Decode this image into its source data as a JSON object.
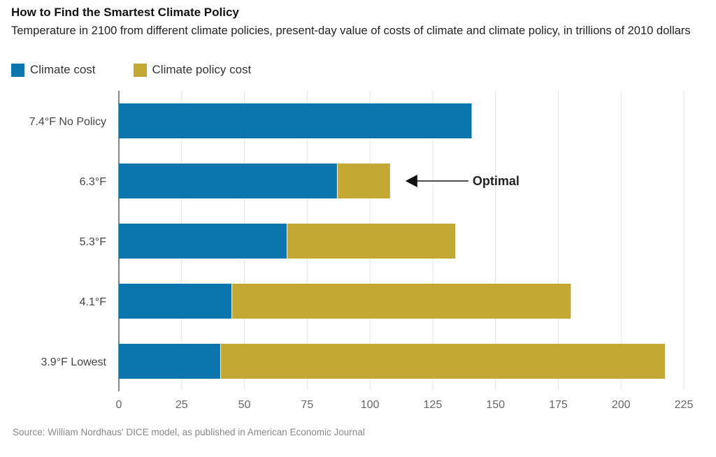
{
  "header": {
    "title": "How to Find the Smartest Climate Policy",
    "subtitle": "Temperature in 2100 from different climate policies, present-day value of costs of climate and climate policy, in trillions of 2010 dollars"
  },
  "legend": {
    "items": [
      {
        "label": "Climate cost",
        "color": "#0a76ad"
      },
      {
        "label": "Climate policy cost",
        "color": "#c4a834"
      }
    ]
  },
  "annotation": {
    "label": "Optimal",
    "category_index": 1
  },
  "source": "Source: William Nordhaus' DICE model, as published in American Economic Journal",
  "chart_data": {
    "type": "bar",
    "orientation": "horizontal",
    "stacked": true,
    "categories": [
      "7.4°F No Policy",
      "6.3°F",
      "5.3°F",
      "4.1°F",
      "3.9°F Lowest"
    ],
    "series": [
      {
        "name": "Climate cost",
        "color": "#0a76ad",
        "values": [
          140.5,
          87,
          67,
          45,
          40.5
        ]
      },
      {
        "name": "Climate policy cost",
        "color": "#c4a834",
        "values": [
          0,
          21,
          67,
          135,
          177
        ]
      }
    ],
    "xlim": [
      0,
      225
    ],
    "xticks": [
      "0",
      "25",
      "50",
      "75",
      "100",
      "125",
      "150",
      "175",
      "200",
      "225"
    ],
    "grid": true,
    "legend_position": "top-left"
  }
}
